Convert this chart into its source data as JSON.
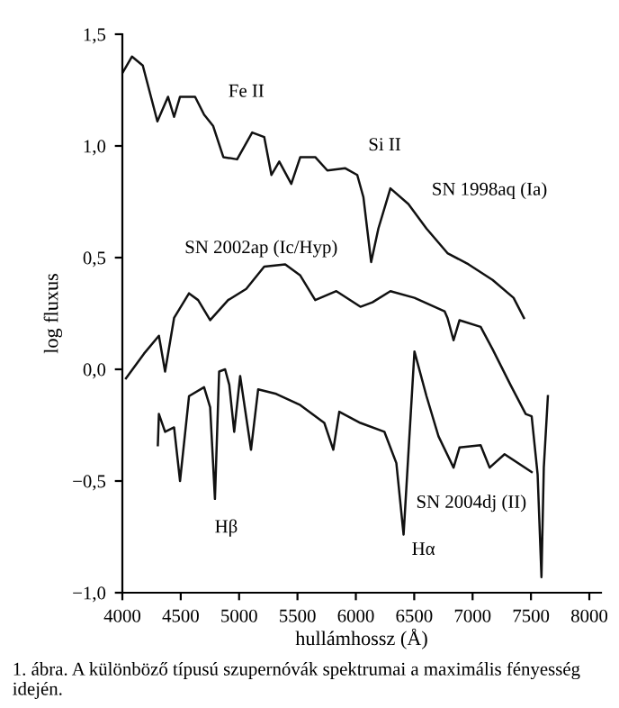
{
  "chart_data": {
    "type": "line",
    "xlabel": "hullámhossz (Å)",
    "ylabel": "log fluxus",
    "xlim": [
      4000,
      8100
    ],
    "xticks": [
      4000,
      4500,
      5000,
      5500,
      6000,
      6500,
      7000,
      7500,
      8000
    ],
    "ylim": [
      -1.0,
      1.5
    ],
    "yticks": [
      {
        "value": -1.0,
        "label": "−1,0"
      },
      {
        "value": -0.5,
        "label": "−0,5"
      },
      {
        "value": 0.0,
        "label": "0,0"
      },
      {
        "value": 0.5,
        "label": "0,5"
      },
      {
        "value": 1.0,
        "label": "1,0"
      },
      {
        "value": 1.5,
        "label": "1,5"
      }
    ],
    "grid": false,
    "legend": false,
    "marker": "none",
    "line_style": "solid",
    "series": [
      {
        "color": "#111111",
        "x": [
          4005,
          4082,
          4175,
          4300,
          4391,
          4443,
          4494,
          4623,
          4700,
          4777,
          4865,
          4983,
          5112,
          5215,
          5277,
          5344,
          5447,
          5524,
          5652,
          5756,
          5910,
          6012,
          6065,
          6131,
          6193,
          6296,
          6450,
          6605,
          6785,
          6965,
          7171,
          7351,
          7440
        ],
        "values": [
          1.33,
          1.4,
          1.36,
          1.11,
          1.22,
          1.13,
          1.22,
          1.22,
          1.14,
          1.09,
          0.95,
          0.94,
          1.06,
          1.04,
          0.87,
          0.93,
          0.83,
          0.95,
          0.95,
          0.89,
          0.9,
          0.87,
          0.77,
          0.48,
          0.63,
          0.81,
          0.74,
          0.63,
          0.52,
          0.47,
          0.4,
          0.32,
          0.23
        ]
      },
      {
        "color": "#111111",
        "x": [
          4031,
          4185,
          4313,
          4366,
          4443,
          4571,
          4649,
          4752,
          4906,
          5061,
          5215,
          5395,
          5524,
          5652,
          5833,
          6039,
          6142,
          6296,
          6502,
          6760,
          6785,
          6837,
          6888,
          7069,
          7171,
          7325,
          7455,
          7506,
          7557,
          7590,
          7610,
          7645
        ],
        "values": [
          -0.04,
          0.07,
          0.15,
          -0.01,
          0.23,
          0.34,
          0.31,
          0.22,
          0.31,
          0.36,
          0.46,
          0.47,
          0.42,
          0.31,
          0.35,
          0.28,
          0.3,
          0.35,
          0.32,
          0.26,
          0.23,
          0.13,
          0.22,
          0.19,
          0.09,
          -0.07,
          -0.2,
          -0.21,
          -0.47,
          -0.93,
          -0.44,
          -0.12
        ]
      },
      {
        "color": "#111111",
        "x": [
          4304,
          4313,
          4366,
          4443,
          4494,
          4571,
          4700,
          4752,
          4793,
          4829,
          4880,
          4916,
          4958,
          5009,
          5102,
          5163,
          5318,
          5524,
          5730,
          5807,
          5858,
          6039,
          6245,
          6347,
          6409,
          6502,
          6605,
          6708,
          6837,
          6888,
          7069,
          7146,
          7274,
          7506
        ],
        "values": [
          -0.34,
          -0.2,
          -0.28,
          -0.26,
          -0.5,
          -0.12,
          -0.08,
          -0.17,
          -0.58,
          -0.01,
          0.0,
          -0.07,
          -0.28,
          -0.03,
          -0.36,
          -0.09,
          -0.11,
          -0.16,
          -0.24,
          -0.36,
          -0.19,
          -0.24,
          -0.28,
          -0.42,
          -0.74,
          0.08,
          -0.12,
          -0.3,
          -0.44,
          -0.35,
          -0.34,
          -0.44,
          -0.38,
          -0.46
        ]
      }
    ],
    "annotations": [
      "Fe II",
      "Si II",
      "SN 1998aq (Ia)",
      "SN 2002ap (Ic/Hyp)",
      "Hβ",
      "Hα",
      "SN 2004dj (II)",
      "1. ábra. A különböző típusú szupernóvák spektrumai a maximális fényesség idején."
    ]
  }
}
